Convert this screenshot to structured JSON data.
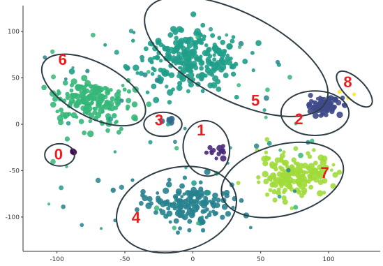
{
  "chart_data": {
    "type": "scatter",
    "title": "",
    "xlabel": "",
    "ylabel": "",
    "xlim": [
      -125,
      138
    ],
    "ylim": [
      -137,
      128
    ],
    "xticks": [
      "-100",
      "-50",
      "0",
      "50",
      "100"
    ],
    "yticks": [
      "100",
      "50",
      "0",
      "-50",
      "-100"
    ],
    "xtick_values": [
      -100,
      -50,
      0,
      50,
      100
    ],
    "ytick_values": [
      100,
      50,
      0,
      -50,
      -100
    ],
    "grid": false,
    "clusters": [
      {
        "label": "0",
        "color": "#440154",
        "center": [
          -88,
          -30
        ],
        "spread": [
          2,
          2
        ],
        "count": 3
      },
      {
        "label": "1",
        "color": "#482878",
        "center": [
          18,
          -28
        ],
        "spread": [
          7,
          9
        ],
        "count": 14
      },
      {
        "label": "2",
        "color": "#3e4a89",
        "center": [
          96,
          20
        ],
        "spread": [
          11,
          8
        ],
        "count": 90
      },
      {
        "label": "3",
        "color": "#31688e",
        "center": [
          -18,
          4
        ],
        "spread": [
          8,
          4
        ],
        "count": 6
      },
      {
        "label": "4",
        "color": "#26828e",
        "center": [
          -5,
          -85
        ],
        "spread": [
          28,
          22
        ],
        "count": 150
      },
      {
        "label": "5",
        "color": "#1f9e89",
        "center": [
          -5,
          70
        ],
        "spread": [
          38,
          28
        ],
        "count": 260
      },
      {
        "label": "6",
        "color": "#35b779",
        "center": [
          -75,
          25
        ],
        "spread": [
          28,
          22
        ],
        "count": 170
      },
      {
        "label": "7",
        "color": "#a0da39",
        "center": [
          75,
          -55
        ],
        "spread": [
          24,
          20
        ],
        "count": 170
      },
      {
        "label": "8",
        "color": "#fde725",
        "center": [
          112,
          35
        ],
        "spread": [
          8,
          6
        ],
        "count": 3
      }
    ],
    "outline_color": "#2f3e46",
    "label_color": "#ee1c1c"
  }
}
